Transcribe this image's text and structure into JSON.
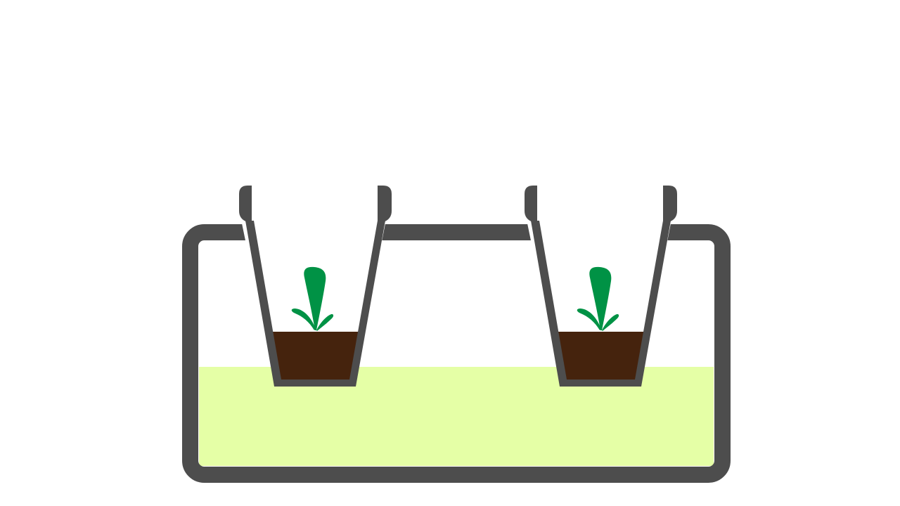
{
  "diagram": {
    "subject": "hydroponic-reservoir-with-two-net-pots",
    "components": {
      "reservoir": "tank",
      "solution": "nutrient-solution",
      "pots": [
        {
          "id": "pot-left",
          "medium": "growing-medium",
          "plant": "seedling"
        },
        {
          "id": "pot-right",
          "medium": "growing-medium",
          "plant": "seedling"
        }
      ]
    },
    "colors": {
      "background": "#ffffff",
      "outline": "#4d4d4d",
      "solution": "#e5ffa6",
      "medium": "#45230d",
      "plant": "#009245"
    }
  }
}
